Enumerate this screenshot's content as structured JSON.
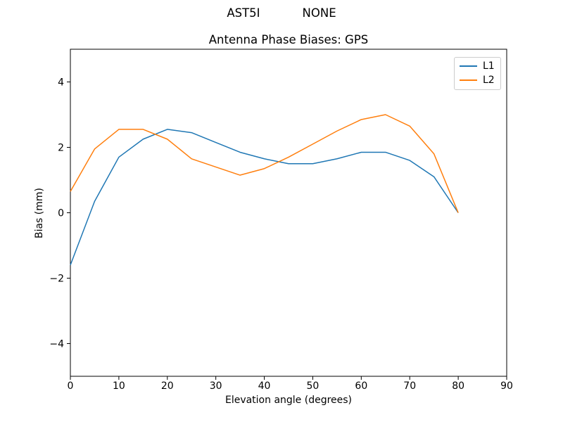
{
  "suptitle": {
    "left": "AST5I",
    "right": "NONE"
  },
  "chart_data": {
    "type": "line",
    "title": "Antenna Phase Biases: GPS",
    "xlabel": "Elevation angle (degrees)",
    "ylabel": "Bias (mm)",
    "xlim": [
      0,
      90
    ],
    "ylim": [
      -5,
      5
    ],
    "grid": false,
    "legend_position": "upper right",
    "background": "#ffffff",
    "axis_color": "#000000",
    "x": [
      0,
      5,
      10,
      15,
      20,
      25,
      30,
      35,
      40,
      45,
      50,
      55,
      60,
      65,
      70,
      75,
      80
    ],
    "x_ticks": [
      0,
      10,
      20,
      30,
      40,
      50,
      60,
      70,
      80,
      90
    ],
    "x_tick_labels": [
      "0",
      "10",
      "20",
      "30",
      "40",
      "50",
      "60",
      "70",
      "80",
      "90"
    ],
    "y_ticks": [
      -4,
      -2,
      0,
      2,
      4
    ],
    "y_tick_labels": [
      "−4",
      "−2",
      "0",
      "2",
      "4"
    ],
    "series": [
      {
        "name": "L1",
        "color": "#1f77b4",
        "values": [
          -1.6,
          0.35,
          1.7,
          2.25,
          2.55,
          2.45,
          2.15,
          1.85,
          1.65,
          1.5,
          1.5,
          1.65,
          1.85,
          1.85,
          1.6,
          1.1,
          0.0
        ]
      },
      {
        "name": "L2",
        "color": "#ff7f0e",
        "values": [
          0.65,
          1.95,
          2.55,
          2.55,
          2.25,
          1.65,
          1.4,
          1.15,
          1.35,
          1.7,
          2.1,
          2.5,
          2.85,
          3.0,
          2.65,
          1.8,
          0.0
        ]
      }
    ]
  }
}
